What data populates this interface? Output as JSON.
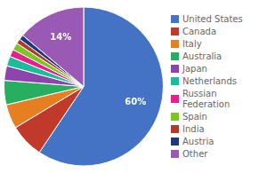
{
  "chart_data": {
    "type": "pie",
    "categories": [
      "United States",
      "Canada",
      "Italy",
      "Australia",
      "Japan",
      "Netherlands",
      "Russian\nFederation",
      "Spain",
      "India",
      "Austria",
      "Other"
    ],
    "values": [
      60,
      7,
      5,
      5,
      3,
      2,
      1.5,
      1.5,
      1,
      1,
      14
    ],
    "value_labels": [
      "60%",
      null,
      null,
      null,
      null,
      null,
      null,
      null,
      null,
      null,
      "14%"
    ],
    "colors": [
      "#4472C4",
      "#C0392B",
      "#E67E22",
      "#27AE60",
      "#8E44AD",
      "#1ABC9C",
      "#E91E8C",
      "#7DC526",
      "#B03A2E",
      "#1F3A7A",
      "#9B59B6"
    ],
    "legend": "right"
  }
}
